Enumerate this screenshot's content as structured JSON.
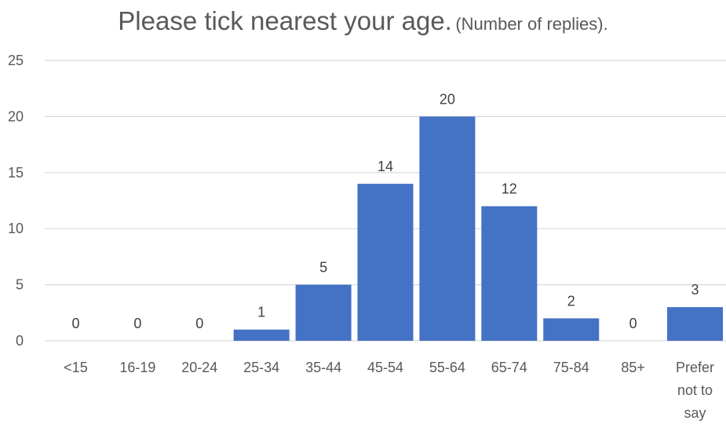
{
  "chart_data": {
    "type": "bar",
    "title": "Please tick nearest your age.",
    "subtitle": "(Number of replies).",
    "categories": [
      "<15",
      "16-19",
      "20-24",
      "25-34",
      "35-44",
      "45-54",
      "55-64",
      "65-74",
      "75-84",
      "85+",
      "Prefer not to say"
    ],
    "values": [
      0,
      0,
      0,
      1,
      5,
      14,
      20,
      12,
      2,
      0,
      3
    ],
    "xlabel": "",
    "ylabel": "",
    "ylim": [
      0,
      25
    ],
    "yticks": [
      0,
      5,
      10,
      15,
      20,
      25
    ],
    "grid": true,
    "legend": "none",
    "bar_color": "#4472C4",
    "gridline_color": "#D9D9D9"
  }
}
